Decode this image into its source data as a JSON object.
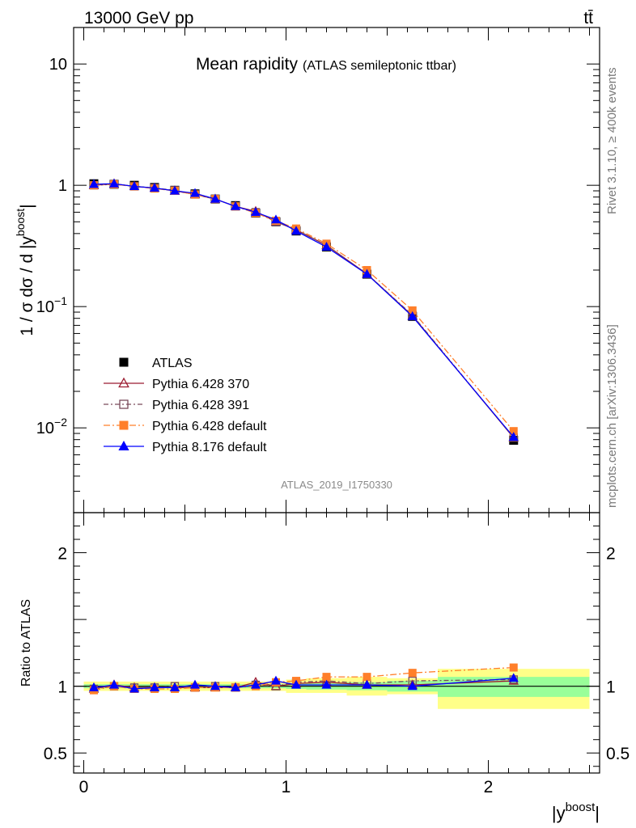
{
  "header": {
    "energy_label": "13000 GeV pp",
    "process_label": "tt̄"
  },
  "side": {
    "rivet_label": "Rivet 3.1.10, ≥ 400k events",
    "mcplots_label": "mcplots.cern.ch [arXiv:1306.3436]"
  },
  "chart_data": [
    {
      "type": "line",
      "title": "Mean rapidity",
      "subtitle": "(ATLAS semileptonic ttbar)",
      "analysis_label": "ATLAS_2019_I1750330",
      "ylabel": "1 / σ dσ / d |y^boost|",
      "xlabel": "|y^boost|",
      "yscale": "log",
      "xlim": [
        -0.05,
        2.55
      ],
      "ylim": [
        0.002,
        20
      ],
      "y_ticks": [
        {
          "value": 10,
          "label": "10"
        },
        {
          "value": 1,
          "label": "1"
        },
        {
          "value": 0.1,
          "label": "10^-1"
        },
        {
          "value": 0.01,
          "label": "10^-2"
        }
      ],
      "legend_position": "bottom-left",
      "x": [
        0.05,
        0.15,
        0.25,
        0.35,
        0.45,
        0.55,
        0.65,
        0.75,
        0.85,
        0.95,
        1.05,
        1.2,
        1.4,
        1.625,
        2.125
      ],
      "series": [
        {
          "name": "ATLAS",
          "color": "#000000",
          "marker": "square",
          "values": [
            1.03,
            1.02,
            1.0,
            0.96,
            0.91,
            0.85,
            0.77,
            0.68,
            0.59,
            0.5,
            0.42,
            0.31,
            0.185,
            0.083,
            0.0079
          ]
        },
        {
          "name": "Pythia 6.428 370",
          "color": "#9b1b30",
          "marker": "triangle-open",
          "dash": "",
          "values": [
            1.0,
            1.03,
            0.98,
            0.95,
            0.9,
            0.84,
            0.77,
            0.67,
            0.61,
            0.5,
            0.43,
            0.32,
            0.186,
            0.084,
            0.0083
          ]
        },
        {
          "name": "Pythia 6.428 391",
          "color": "#7a4a5a",
          "marker": "square-open",
          "dash": "6,3,2,3",
          "values": [
            1.0,
            1.02,
            0.98,
            0.95,
            0.91,
            0.84,
            0.77,
            0.67,
            0.6,
            0.5,
            0.43,
            0.32,
            0.186,
            0.085,
            0.0083
          ]
        },
        {
          "name": "Pythia 6.428 default",
          "color": "#ff7f2a",
          "marker": "square",
          "dash": "8,3,2,3",
          "values": [
            1.0,
            1.02,
            0.98,
            0.94,
            0.9,
            0.84,
            0.77,
            0.67,
            0.59,
            0.51,
            0.44,
            0.33,
            0.2,
            0.093,
            0.0094
          ]
        },
        {
          "name": "Pythia 8.176 default",
          "color": "#0000ff",
          "marker": "triangle",
          "dash": "",
          "values": [
            1.02,
            1.03,
            0.98,
            0.95,
            0.9,
            0.86,
            0.77,
            0.67,
            0.6,
            0.52,
            0.42,
            0.31,
            0.185,
            0.083,
            0.0084
          ]
        }
      ]
    },
    {
      "type": "line",
      "ylabel": "Ratio to ATLAS",
      "xlabel": "|y^boost|",
      "xlim": [
        -0.05,
        2.55
      ],
      "ylim": [
        0.35,
        2.3
      ],
      "y_ticks": [
        {
          "value": 2,
          "label": "2"
        },
        {
          "value": 1,
          "label": "1"
        },
        {
          "value": 0.5,
          "label": "0.5"
        }
      ],
      "x_ticks": [
        {
          "value": 0,
          "label": "0"
        },
        {
          "value": 1,
          "label": "1"
        },
        {
          "value": 2,
          "label": "2"
        }
      ],
      "uncertainty_bands": [
        {
          "x_lo": 0.0,
          "x_hi": 0.1,
          "stat_lo": 0.985,
          "stat_hi": 1.015,
          "tot_lo": 0.965,
          "tot_hi": 1.035
        },
        {
          "x_lo": 0.1,
          "x_hi": 0.2,
          "stat_lo": 0.985,
          "stat_hi": 1.015,
          "tot_lo": 0.965,
          "tot_hi": 1.035
        },
        {
          "x_lo": 0.2,
          "x_hi": 0.3,
          "stat_lo": 0.985,
          "stat_hi": 1.015,
          "tot_lo": 0.965,
          "tot_hi": 1.035
        },
        {
          "x_lo": 0.3,
          "x_hi": 0.4,
          "stat_lo": 0.985,
          "stat_hi": 1.015,
          "tot_lo": 0.965,
          "tot_hi": 1.035
        },
        {
          "x_lo": 0.4,
          "x_hi": 0.5,
          "stat_lo": 0.985,
          "stat_hi": 1.015,
          "tot_lo": 0.965,
          "tot_hi": 1.035
        },
        {
          "x_lo": 0.5,
          "x_hi": 0.6,
          "stat_lo": 0.985,
          "stat_hi": 1.015,
          "tot_lo": 0.965,
          "tot_hi": 1.035
        },
        {
          "x_lo": 0.6,
          "x_hi": 0.7,
          "stat_lo": 0.985,
          "stat_hi": 1.015,
          "tot_lo": 0.965,
          "tot_hi": 1.035
        },
        {
          "x_lo": 0.7,
          "x_hi": 0.8,
          "stat_lo": 0.985,
          "stat_hi": 1.015,
          "tot_lo": 0.965,
          "tot_hi": 1.035
        },
        {
          "x_lo": 0.8,
          "x_hi": 0.9,
          "stat_lo": 0.985,
          "stat_hi": 1.015,
          "tot_lo": 0.965,
          "tot_hi": 1.035
        },
        {
          "x_lo": 0.9,
          "x_hi": 1.0,
          "stat_lo": 0.985,
          "stat_hi": 1.015,
          "tot_lo": 0.965,
          "tot_hi": 1.035
        },
        {
          "x_lo": 1.0,
          "x_hi": 1.1,
          "stat_lo": 0.98,
          "stat_hi": 1.02,
          "tot_lo": 0.95,
          "tot_hi": 1.05
        },
        {
          "x_lo": 1.1,
          "x_hi": 1.3,
          "stat_lo": 0.975,
          "stat_hi": 1.025,
          "tot_lo": 0.95,
          "tot_hi": 1.06
        },
        {
          "x_lo": 1.3,
          "x_hi": 1.5,
          "stat_lo": 0.97,
          "stat_hi": 1.03,
          "tot_lo": 0.93,
          "tot_hi": 1.07
        },
        {
          "x_lo": 1.5,
          "x_hi": 1.75,
          "stat_lo": 0.96,
          "stat_hi": 1.04,
          "tot_lo": 0.94,
          "tot_hi": 1.06
        },
        {
          "x_lo": 1.75,
          "x_hi": 2.5,
          "stat_lo": 0.92,
          "stat_hi": 1.07,
          "tot_lo": 0.83,
          "tot_hi": 1.13
        }
      ],
      "x": [
        0.05,
        0.15,
        0.25,
        0.35,
        0.45,
        0.55,
        0.65,
        0.75,
        0.85,
        0.95,
        1.05,
        1.2,
        1.4,
        1.625,
        2.125
      ],
      "series": [
        {
          "name": "Pythia 6.428 370",
          "color": "#9b1b30",
          "marker": "triangle-open",
          "dash": "",
          "values": [
            0.98,
            1.01,
            0.99,
            0.99,
            0.99,
            0.99,
            0.99,
            0.99,
            1.03,
            1.0,
            1.02,
            1.03,
            1.01,
            1.01,
            1.04
          ]
        },
        {
          "name": "Pythia 6.428 391",
          "color": "#7a4a5a",
          "marker": "square-open",
          "dash": "6,3,2,3",
          "values": [
            0.98,
            1.0,
            0.99,
            0.99,
            1.0,
            0.99,
            1.0,
            0.99,
            1.01,
            1.0,
            1.03,
            1.04,
            1.02,
            1.04,
            1.05
          ]
        },
        {
          "name": "Pythia 6.428 default",
          "color": "#ff7f2a",
          "marker": "square",
          "dash": "8,3,2,3",
          "values": [
            0.97,
            1.0,
            0.98,
            0.98,
            0.98,
            0.99,
            0.99,
            0.99,
            1.0,
            1.03,
            1.04,
            1.07,
            1.07,
            1.1,
            1.14
          ]
        },
        {
          "name": "Pythia 8.176 default",
          "color": "#0000ff",
          "marker": "triangle",
          "dash": "",
          "values": [
            0.99,
            1.01,
            0.98,
            0.99,
            0.99,
            1.01,
            1.0,
            0.99,
            1.01,
            1.04,
            1.01,
            1.01,
            1.01,
            1.0,
            1.06
          ]
        }
      ]
    }
  ]
}
